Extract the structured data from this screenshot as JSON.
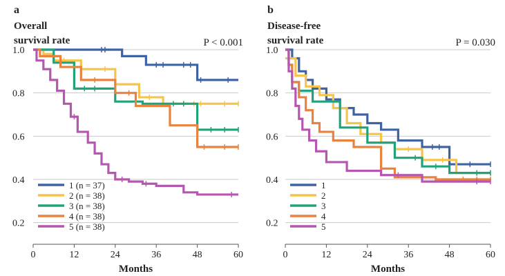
{
  "chart_data": [
    {
      "type": "line",
      "step": true,
      "panel_label": "a",
      "title_lines": [
        "Overall",
        "survival rate"
      ],
      "p_value": "P < 0.001",
      "xlabel": "Months",
      "xlim": [
        0,
        60
      ],
      "ylim": [
        0.1,
        1.0
      ],
      "xticks": [
        0,
        12,
        24,
        36,
        48,
        60
      ],
      "xtick_labels": [
        "0",
        "12",
        "24",
        "36",
        "48",
        "60"
      ],
      "yticks": [
        1.0,
        0.8,
        0.6,
        0.4,
        0.2
      ],
      "ytick_labels": [
        "1.0",
        "0.8",
        "0.6",
        "0.4",
        "0.2"
      ],
      "grid": "horizontal",
      "legend_position": "bottom-left",
      "series": [
        {
          "name": "1 (n = 37)",
          "color": "#3e63a3",
          "x": [
            0,
            26,
            33,
            48,
            60
          ],
          "y": [
            1.0,
            0.97,
            0.93,
            0.86,
            0.86
          ],
          "censor_x": [
            20,
            21,
            36,
            38,
            44,
            46,
            49,
            57
          ]
        },
        {
          "name": "2 (n = 38)",
          "color": "#f7c44b",
          "x": [
            0,
            3,
            6,
            14,
            24,
            31,
            38,
            60
          ],
          "y": [
            1.0,
            0.98,
            0.95,
            0.91,
            0.84,
            0.78,
            0.75,
            0.75
          ],
          "censor_x": [
            9,
            21,
            34,
            44,
            47,
            49,
            56,
            60
          ]
        },
        {
          "name": "3 (n = 38)",
          "color": "#20a37b",
          "x": [
            0,
            6,
            12,
            24,
            32,
            48,
            60
          ],
          "y": [
            1.0,
            0.94,
            0.82,
            0.76,
            0.75,
            0.63,
            0.63
          ],
          "censor_x": [
            15,
            18,
            41,
            44,
            52,
            56,
            60
          ]
        },
        {
          "name": "4 (n = 38)",
          "color": "#e8823f",
          "x": [
            0,
            2,
            8,
            14,
            24,
            30,
            40,
            48,
            60
          ],
          "y": [
            1.0,
            0.97,
            0.92,
            0.86,
            0.8,
            0.74,
            0.65,
            0.55,
            0.55
          ],
          "censor_x": [
            18,
            28,
            50,
            56,
            60
          ]
        },
        {
          "name": "5 (n = 38)",
          "color": "#b557b0",
          "x": [
            0,
            1,
            3,
            5,
            7,
            9,
            11,
            13,
            16,
            18,
            20,
            22,
            24,
            28,
            32,
            36,
            44,
            48,
            60
          ],
          "y": [
            1.0,
            0.95,
            0.91,
            0.86,
            0.81,
            0.75,
            0.69,
            0.62,
            0.57,
            0.52,
            0.47,
            0.43,
            0.4,
            0.39,
            0.38,
            0.37,
            0.34,
            0.33,
            0.33
          ],
          "censor_x": [
            12,
            26,
            33,
            58
          ]
        }
      ]
    },
    {
      "type": "line",
      "step": true,
      "panel_label": "b",
      "title_lines": [
        "Disease-free",
        "survival rate"
      ],
      "p_value": "P = 0.030",
      "xlabel": "Months",
      "xlim": [
        0,
        60
      ],
      "ylim": [
        0.1,
        1.0
      ],
      "xticks": [
        0,
        12,
        24,
        36,
        48,
        60
      ],
      "xtick_labels": [
        "0",
        "12",
        "24",
        "36",
        "48",
        "60"
      ],
      "yticks": [
        1.0,
        0.8,
        0.6,
        0.4,
        0.2
      ],
      "ytick_labels": [
        "1.0",
        "0.8",
        "0.6",
        "0.4",
        "0.2"
      ],
      "grid": "horizontal",
      "legend_position": "bottom-left",
      "series": [
        {
          "name": "1",
          "color": "#3e63a3",
          "x": [
            0,
            2,
            4,
            6,
            8,
            12,
            16,
            20,
            24,
            28,
            33,
            40,
            48,
            60
          ],
          "y": [
            1.0,
            0.96,
            0.9,
            0.86,
            0.82,
            0.77,
            0.73,
            0.7,
            0.66,
            0.63,
            0.58,
            0.55,
            0.47,
            0.47
          ],
          "censor_x": [
            43,
            45,
            54,
            60
          ]
        },
        {
          "name": "2",
          "color": "#f7c44b",
          "x": [
            0,
            3,
            6,
            10,
            14,
            18,
            22,
            28,
            32,
            40,
            50,
            60
          ],
          "y": [
            0.96,
            0.88,
            0.83,
            0.79,
            0.73,
            0.66,
            0.61,
            0.57,
            0.54,
            0.49,
            0.43,
            0.43
          ],
          "censor_x": [
            16,
            36,
            46,
            60
          ]
        },
        {
          "name": "3",
          "color": "#20a37b",
          "x": [
            0,
            1,
            2,
            4,
            8,
            16,
            24,
            32,
            40,
            48,
            60
          ],
          "y": [
            1.0,
            0.93,
            0.85,
            0.81,
            0.76,
            0.64,
            0.57,
            0.5,
            0.46,
            0.43,
            0.43
          ],
          "censor_x": [
            38,
            44,
            56,
            60
          ]
        },
        {
          "name": "4",
          "color": "#e8823f",
          "x": [
            0,
            1,
            2,
            4,
            6,
            8,
            10,
            14,
            20,
            28,
            32,
            44,
            60
          ],
          "y": [
            1.0,
            0.93,
            0.85,
            0.78,
            0.72,
            0.66,
            0.62,
            0.58,
            0.55,
            0.45,
            0.41,
            0.4,
            0.4
          ],
          "censor_x": [
            52,
            56,
            60
          ]
        },
        {
          "name": "5",
          "color": "#b557b0",
          "x": [
            0,
            1,
            2,
            3,
            4,
            5,
            7,
            9,
            12,
            18,
            28,
            40,
            60
          ],
          "y": [
            1.0,
            0.9,
            0.82,
            0.74,
            0.68,
            0.63,
            0.58,
            0.53,
            0.48,
            0.44,
            0.42,
            0.39,
            0.39
          ],
          "censor_x": [
            33,
            56,
            60
          ]
        }
      ]
    }
  ]
}
